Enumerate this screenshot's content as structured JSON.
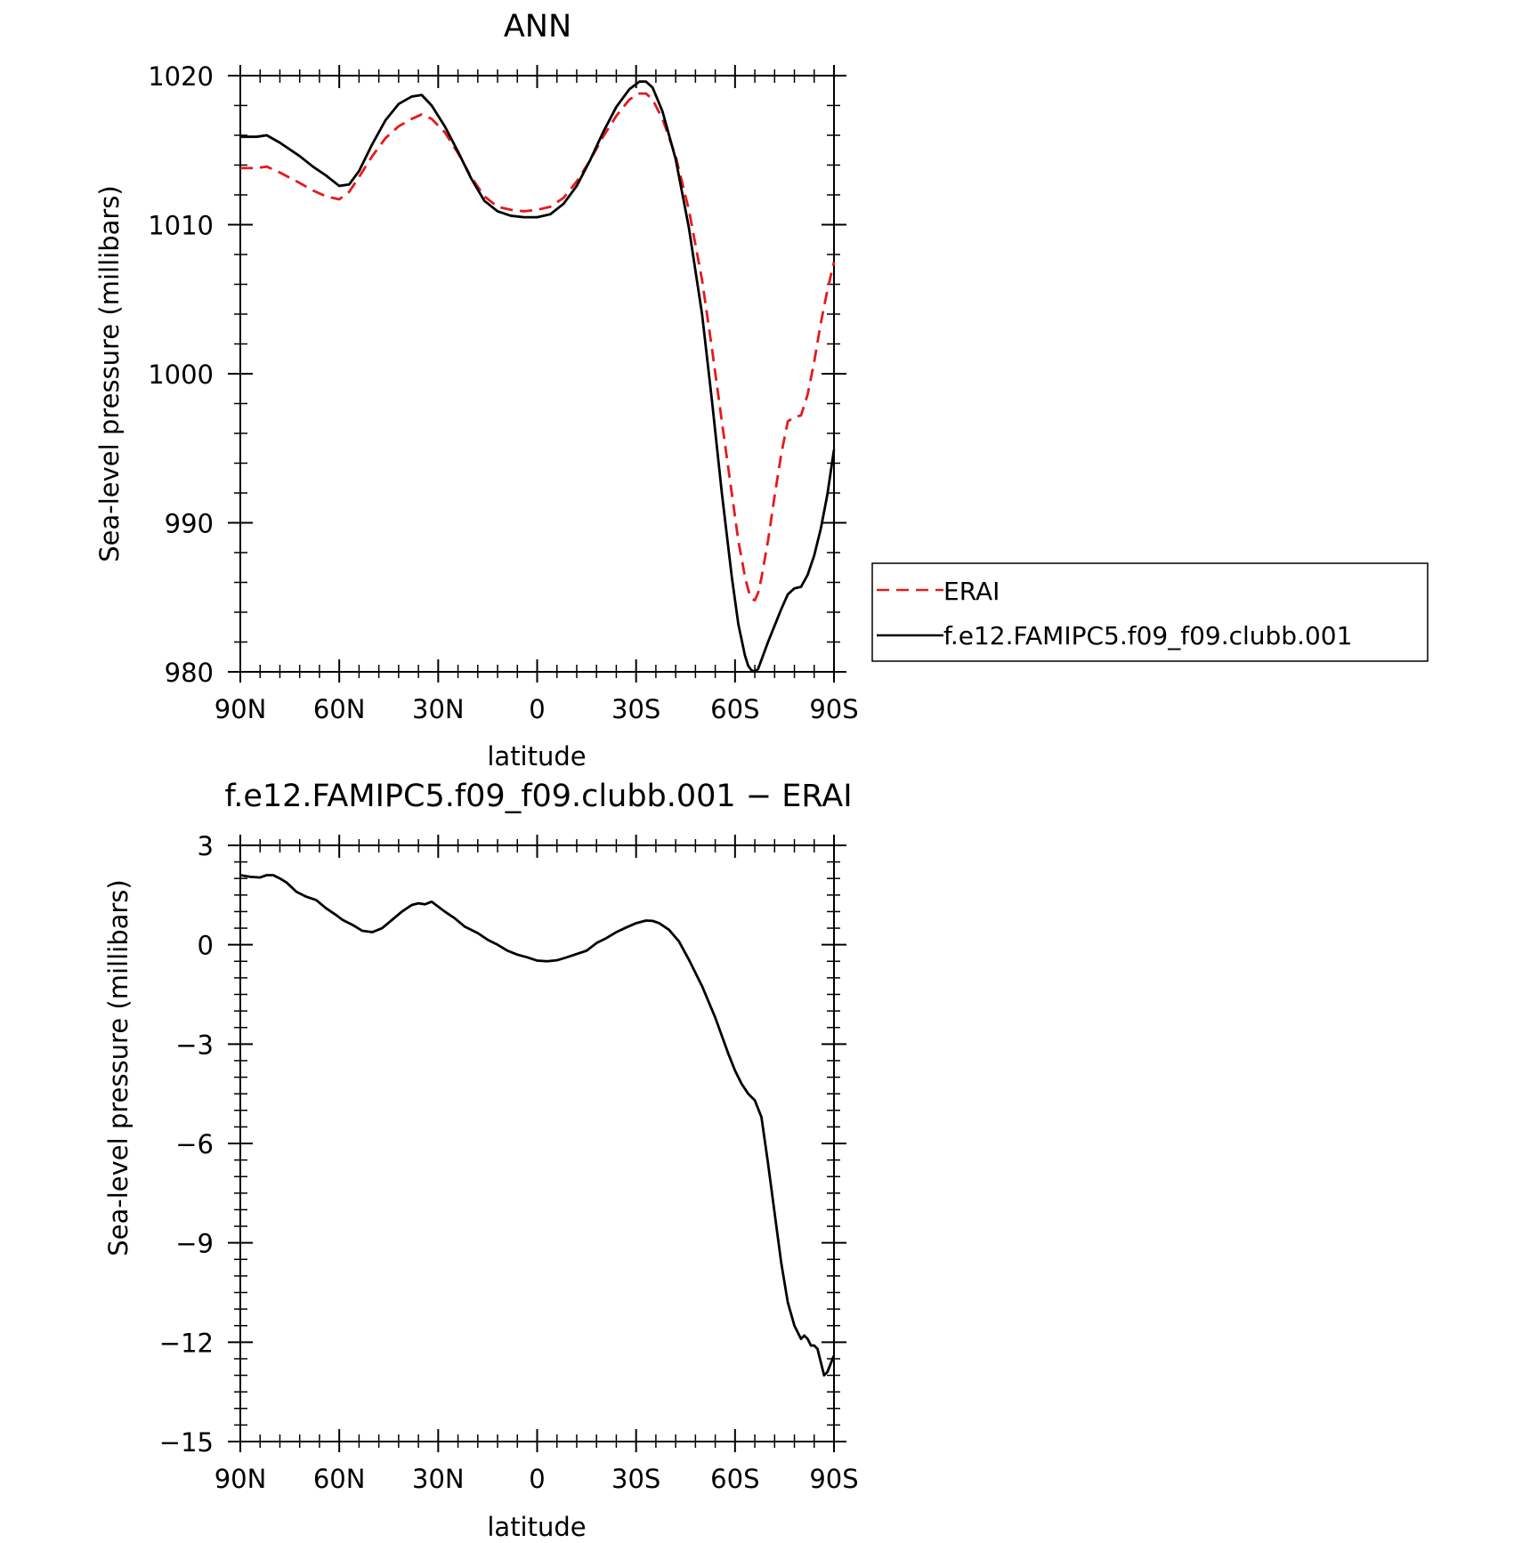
{
  "chart_data": [
    {
      "type": "line",
      "title": "ANN",
      "xlabel": "latitude",
      "ylabel": "Sea-level pressure (millibars)",
      "x_ticks": [
        "90N",
        "60N",
        "30N",
        "0",
        "30S",
        "60S",
        "90S"
      ],
      "x_tick_values": [
        90,
        60,
        30,
        0,
        -30,
        -60,
        -90
      ],
      "y_ticks": [
        "1020",
        "1010",
        "1000",
        "990",
        "980"
      ],
      "y_tick_values": [
        1020,
        1010,
        1000,
        990,
        980
      ],
      "xlim": [
        90,
        -90
      ],
      "ylim": [
        980,
        1020
      ],
      "legend": {
        "placement": "right"
      },
      "series": [
        {
          "name": "ERAI",
          "color": "#e41a1c",
          "dash": "dashed",
          "x": [
            90,
            85,
            82,
            78,
            72,
            68,
            64,
            60,
            57,
            54,
            50,
            46,
            42,
            38,
            35,
            32,
            28,
            24,
            20,
            16,
            12,
            8,
            4,
            0,
            -4,
            -8,
            -12,
            -16,
            -20,
            -24,
            -28,
            -31,
            -33,
            -35,
            -38,
            -42,
            -46,
            -50,
            -53,
            -56,
            -59,
            -61,
            -63,
            -64,
            -65,
            -66,
            -67,
            -68,
            -70,
            -72,
            -74,
            -76,
            -78,
            -80,
            -82,
            -84,
            -86,
            -88,
            -90
          ],
          "values": [
            1013.8,
            1013.8,
            1013.9,
            1013.5,
            1012.8,
            1012.3,
            1011.9,
            1011.7,
            1012.2,
            1013.2,
            1014.6,
            1015.8,
            1016.6,
            1017.1,
            1017.4,
            1017.1,
            1016.2,
            1014.8,
            1013.2,
            1011.9,
            1011.2,
            1011.0,
            1010.9,
            1011.0,
            1011.2,
            1011.8,
            1012.9,
            1014.3,
            1015.9,
            1017.3,
            1018.4,
            1018.8,
            1018.8,
            1018.4,
            1017.1,
            1014.6,
            1011.0,
            1006.3,
            1001.7,
            996.8,
            992.0,
            988.8,
            986.4,
            985.5,
            984.9,
            984.8,
            985.3,
            986.3,
            988.8,
            991.8,
            994.6,
            996.8,
            997.1,
            997.2,
            998.6,
            1000.8,
            1003.4,
            1005.6,
            1007.5
          ]
        },
        {
          "name": "f.e12.FAMIPC5.f09_f09.clubb.001",
          "color": "#000000",
          "dash": "solid",
          "x": [
            90,
            85,
            82,
            78,
            72,
            68,
            64,
            60,
            57,
            54,
            50,
            46,
            42,
            38,
            35,
            32,
            28,
            24,
            20,
            16,
            12,
            8,
            4,
            0,
            -4,
            -8,
            -12,
            -16,
            -20,
            -24,
            -28,
            -31,
            -33,
            -35,
            -38,
            -42,
            -46,
            -50,
            -53,
            -56,
            -59,
            -61,
            -63,
            -64,
            -65,
            -66,
            -67,
            -68,
            -70,
            -72,
            -74,
            -76,
            -78,
            -80,
            -82,
            -84,
            -86,
            -88,
            -90
          ],
          "values": [
            1015.9,
            1015.9,
            1016.0,
            1015.5,
            1014.6,
            1013.9,
            1013.3,
            1012.6,
            1012.7,
            1013.6,
            1015.4,
            1017.0,
            1018.1,
            1018.6,
            1018.7,
            1018.0,
            1016.6,
            1014.9,
            1013.1,
            1011.6,
            1010.9,
            1010.6,
            1010.5,
            1010.5,
            1010.7,
            1011.4,
            1012.6,
            1014.3,
            1016.2,
            1017.9,
            1019.1,
            1019.6,
            1019.6,
            1019.2,
            1017.6,
            1014.4,
            1009.8,
            1004.0,
            998.2,
            992.0,
            986.4,
            983.2,
            981.1,
            980.4,
            980.1,
            980.0,
            980.2,
            980.8,
            982.0,
            983.1,
            984.2,
            985.2,
            985.6,
            985.7,
            986.5,
            987.8,
            989.6,
            991.9,
            994.9
          ]
        }
      ]
    },
    {
      "type": "line",
      "title": "f.e12.FAMIPC5.f09_f09.clubb.001 − ERAI",
      "xlabel": "latitude",
      "ylabel": "Sea-level pressure (millibars)",
      "x_ticks": [
        "90N",
        "60N",
        "30N",
        "0",
        "30S",
        "60S",
        "90S"
      ],
      "x_tick_values": [
        90,
        60,
        30,
        0,
        -30,
        -60,
        -90
      ],
      "y_ticks": [
        "3",
        "0",
        "−3",
        "−6",
        "−9",
        "−12",
        "−15"
      ],
      "y_tick_values": [
        3,
        0,
        -3,
        -6,
        -9,
        -12,
        -15
      ],
      "xlim": [
        90,
        -90
      ],
      "ylim": [
        -15,
        3
      ],
      "series": [
        {
          "name": "f.e12.FAMIPC5.f09_f09.clubb.001 − ERAI",
          "color": "#000000",
          "dash": "solid",
          "x": [
            90,
            87,
            84,
            82,
            80,
            78,
            76,
            73,
            70,
            67,
            64,
            61,
            59,
            56,
            53,
            50,
            47,
            44,
            41,
            38,
            36,
            34,
            32,
            30,
            28,
            25,
            22,
            18,
            15,
            12,
            9,
            6,
            3,
            0,
            -3,
            -6,
            -9,
            -12,
            -15,
            -18,
            -21,
            -24,
            -27,
            -30,
            -33,
            -35,
            -37,
            -40,
            -43,
            -46,
            -50,
            -54,
            -58,
            -60,
            -62,
            -64,
            -66,
            -68,
            -70,
            -72,
            -74,
            -76,
            -78,
            -80,
            -81,
            -82,
            -83,
            -84,
            -85,
            -86,
            -87,
            -88,
            -90
          ],
          "values": [
            2.1,
            2.05,
            2.03,
            2.1,
            2.1,
            2.0,
            1.88,
            1.6,
            1.45,
            1.35,
            1.1,
            0.9,
            0.75,
            0.6,
            0.42,
            0.38,
            0.5,
            0.75,
            1.0,
            1.2,
            1.25,
            1.22,
            1.3,
            1.15,
            1.0,
            0.8,
            0.55,
            0.35,
            0.15,
            0.0,
            -0.18,
            -0.3,
            -0.38,
            -0.48,
            -0.5,
            -0.47,
            -0.38,
            -0.28,
            -0.18,
            0.05,
            0.2,
            0.38,
            0.52,
            0.65,
            0.73,
            0.72,
            0.65,
            0.45,
            0.1,
            -0.45,
            -1.25,
            -2.2,
            -3.3,
            -3.8,
            -4.2,
            -4.5,
            -4.7,
            -5.2,
            -6.6,
            -8.1,
            -9.6,
            -10.8,
            -11.5,
            -11.9,
            -11.8,
            -11.9,
            -12.1,
            -12.1,
            -12.2,
            -12.6,
            -13.0,
            -12.9,
            -12.4
          ]
        }
      ]
    }
  ]
}
